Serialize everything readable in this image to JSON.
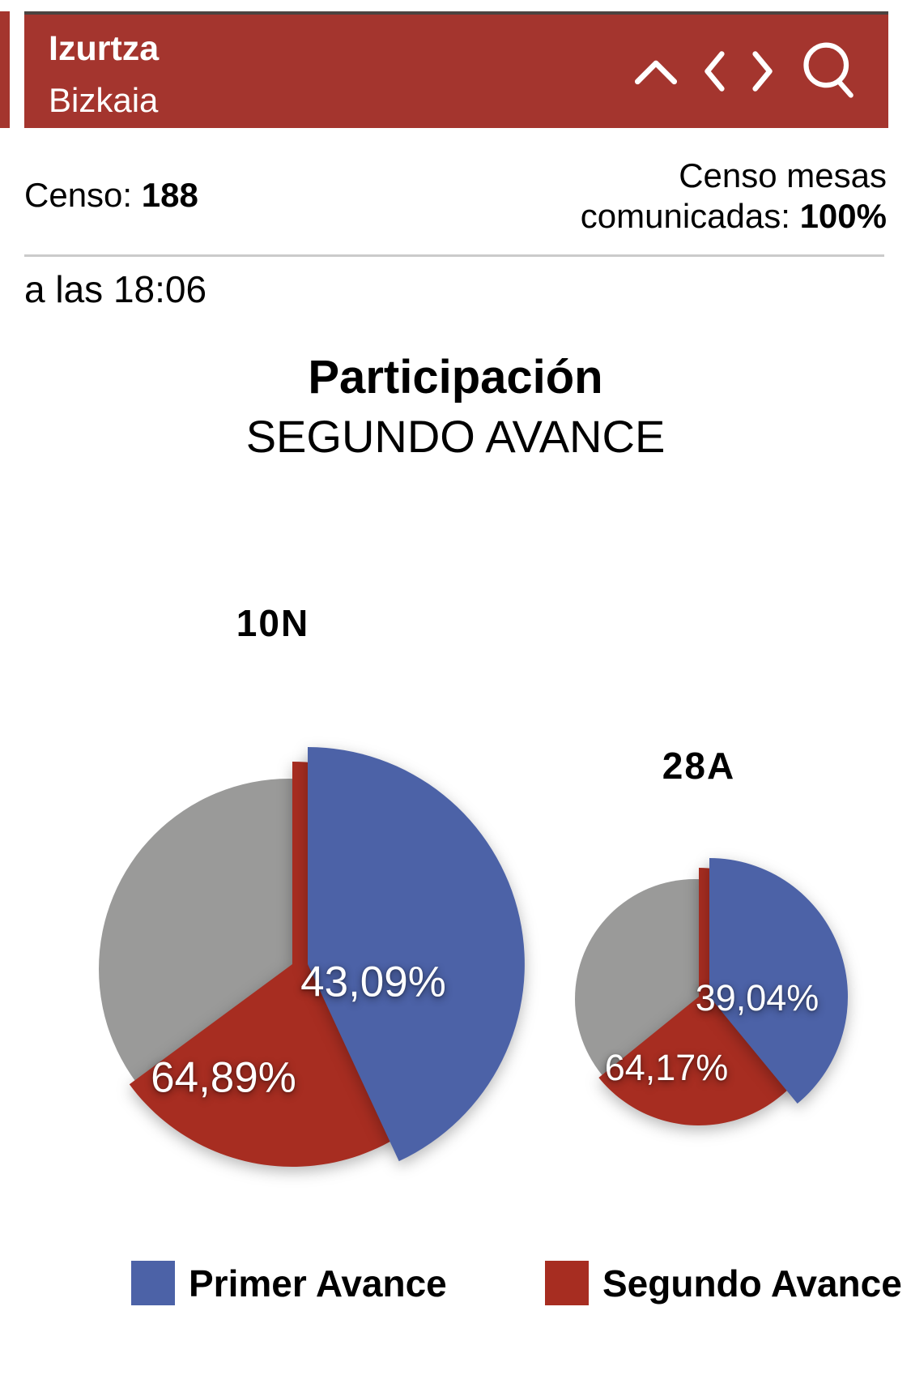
{
  "header": {
    "title": "Izurtza",
    "subtitle": "Bizkaia",
    "icons": [
      "chevron-up-icon",
      "chevron-left-icon",
      "chevron-right-icon",
      "search-icon"
    ]
  },
  "stats": {
    "censo_label": "Censo:",
    "censo_value": "188",
    "mesas_line1": "Censo mesas",
    "mesas_label2": "comunicadas:",
    "mesas_value": "100%",
    "time_text": "a las 18:06"
  },
  "section": {
    "title": "Participación",
    "subtitle": "SEGUNDO AVANCE"
  },
  "colors": {
    "primer_avance_blue": "#4C62A7",
    "segundo_avance_red": "#A72D21",
    "resto_gray": "#9A9A99",
    "header_red": "#A4352E",
    "header_topline": "#4B4340",
    "divider_gray": "#CBCBCB"
  },
  "chart_data": [
    {
      "type": "pie",
      "title": "10N",
      "units": "% participación sobre censo",
      "slices": [
        {
          "name": "Primer Avance",
          "value": 43.09,
          "label": "43,09%",
          "color": "#4C62A7"
        },
        {
          "name": "Segundo Avance",
          "value": 64.89,
          "label": "64,89%",
          "color": "#A72D21"
        }
      ],
      "rest_color": "#9A9A99",
      "legend_position": "bottom"
    },
    {
      "type": "pie",
      "title": "28A",
      "units": "% participación sobre censo",
      "slices": [
        {
          "name": "Primer Avance",
          "value": 39.04,
          "label": "39,04%",
          "color": "#4C62A7"
        },
        {
          "name": "Segundo Avance",
          "value": 64.17,
          "label": "64,17%",
          "color": "#A72D21"
        }
      ],
      "rest_color": "#9A9A99",
      "legend_position": "bottom"
    }
  ],
  "legend": [
    {
      "label": "Primer Avance",
      "color": "#4C62A7"
    },
    {
      "label": "Segundo Avance",
      "color": "#A72D21"
    }
  ]
}
